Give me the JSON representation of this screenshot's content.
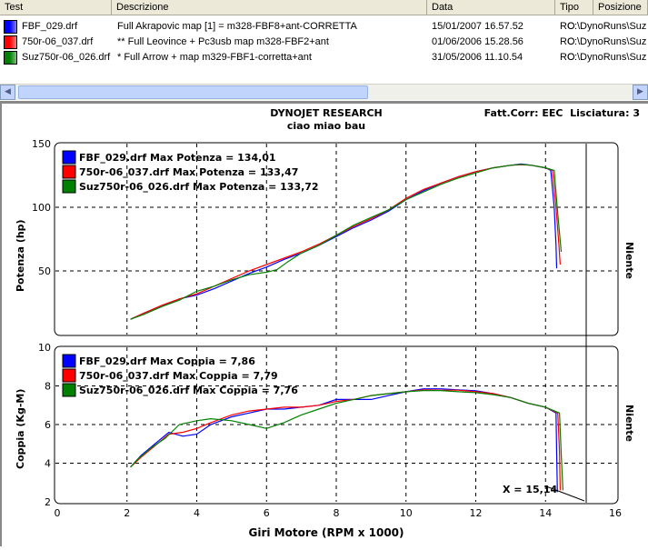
{
  "table": {
    "columns": [
      "Test",
      "Descrizione",
      "Data",
      "Tipo",
      "Posizione"
    ],
    "rows": [
      {
        "color": "#0000ff",
        "test": "FBF_029.drf",
        "descrizione": "Full Akrapovic map [1] = m328-FBF8+ant-CORRETTA",
        "data": "15/01/2007 16.57.52",
        "tipo": "RO",
        "posizione": "C:\\DynoRuns\\Suz"
      },
      {
        "color": "#ff0000",
        "test": "750r-06_037.drf",
        "descrizione": "** Full Leovince + Pc3usb map m328-FBF2+ant",
        "data": "01/06/2006 15.28.56",
        "tipo": "RO",
        "posizione": "C:\\DynoRuns\\Suz"
      },
      {
        "color": "#008000",
        "test": "Suz750r-06_026.drf",
        "descrizione": "* Full Arrow + map m329-FBF1-corretta+ant",
        "data": "31/05/2006 11.10.54",
        "tipo": "RO",
        "posizione": "C:\\DynoRuns\\Suz"
      }
    ]
  },
  "scrollbar": {
    "left_arrow": "◀",
    "right_arrow": "▶"
  },
  "header": {
    "title": "DYNOJET RESEARCH",
    "subtitle": "ciao miao bau",
    "info": "Fatt.Corr: EEC  Lisciatura: 3"
  },
  "xlabel": "Giri Motore (RPM x 1000)",
  "side_label": "Niente",
  "cursor_label": "X = 15,14",
  "chart_data": [
    {
      "type": "line",
      "ylabel": "Potenza (hp)",
      "ylim": [
        0,
        150
      ],
      "xlim": [
        0,
        16
      ],
      "yticks": [
        "50",
        "100",
        "150"
      ],
      "xticks": [],
      "grid": true,
      "legend_position": "top-left",
      "series": [
        {
          "name": "FBF_029.drf Max Potenza = 134,01",
          "color": "#0000ff",
          "x": [
            2.1,
            2.5,
            3,
            3.5,
            4,
            4.5,
            5,
            5.5,
            6,
            6.5,
            7,
            7.5,
            8,
            8.5,
            9,
            9.5,
            10,
            10.5,
            11,
            11.5,
            12,
            12.5,
            13,
            13.3,
            13.6,
            14,
            14.15,
            14.25,
            14.3,
            14.32
          ],
          "y": [
            12,
            17,
            22,
            28,
            31,
            36,
            42,
            48,
            53,
            59,
            64,
            70,
            77,
            84,
            90,
            97,
            106,
            113,
            119,
            124,
            128,
            131,
            133,
            134,
            133,
            131,
            129,
            100,
            70,
            52
          ]
        },
        {
          "name": "750r-06_037.drf Max Potenza = 133,47",
          "color": "#ff0000",
          "x": [
            2.1,
            2.5,
            3,
            3.5,
            4,
            4.5,
            5,
            5.5,
            6,
            6.5,
            7,
            7.5,
            8,
            8.5,
            9,
            9.5,
            10,
            10.5,
            11,
            11.5,
            12,
            12.5,
            13,
            13.3,
            13.6,
            14,
            14.2,
            14.3,
            14.38,
            14.42
          ],
          "y": [
            12,
            17,
            23,
            28,
            32,
            38,
            44,
            50,
            55,
            60,
            65,
            71,
            78,
            85,
            91,
            98,
            107,
            114,
            119,
            124,
            128,
            131,
            133,
            133.5,
            133,
            131,
            129,
            100,
            72,
            55
          ]
        },
        {
          "name": "Suz750r-06_026.drf Max Potenza = 133,72",
          "color": "#008000",
          "x": [
            2.1,
            2.5,
            3,
            3.5,
            4,
            4.5,
            5,
            5.5,
            6,
            6.3,
            6.6,
            7,
            7.5,
            8,
            8.5,
            9,
            9.5,
            10,
            10.5,
            11,
            11.5,
            12,
            12.5,
            13,
            13.3,
            13.6,
            14,
            14.25,
            14.35,
            14.45
          ],
          "y": [
            12,
            16,
            22,
            27,
            34,
            38,
            43,
            47,
            49,
            51,
            57,
            64,
            70,
            78,
            86,
            92,
            98,
            106,
            112,
            118,
            123,
            127,
            131,
            133,
            133.7,
            133,
            131,
            129,
            95,
            65
          ]
        }
      ]
    },
    {
      "type": "line",
      "ylabel": "Coppia (Kg-M)",
      "ylim": [
        2,
        10
      ],
      "xlim": [
        0,
        16
      ],
      "yticks": [
        "2",
        "4",
        "6",
        "8",
        "10"
      ],
      "xticks": [
        "0",
        "2",
        "4",
        "6",
        "8",
        "10",
        "12",
        "14",
        "16"
      ],
      "grid": true,
      "legend_position": "top-left",
      "series": [
        {
          "name": "FBF_029.drf Max Coppia = 7,86",
          "color": "#0000ff",
          "x": [
            2.1,
            2.4,
            2.8,
            3.2,
            3.6,
            4,
            4.4,
            5,
            5.5,
            6,
            6.5,
            7,
            7.5,
            8,
            8.5,
            9,
            9.5,
            10,
            10.5,
            11,
            11.5,
            12,
            12.5,
            13,
            13.5,
            14,
            14.3,
            14.32,
            14.34
          ],
          "y": [
            3.8,
            4.4,
            5.0,
            5.6,
            5.4,
            5.5,
            6.0,
            6.4,
            6.6,
            6.8,
            6.8,
            6.9,
            7.0,
            7.3,
            7.3,
            7.3,
            7.5,
            7.7,
            7.85,
            7.85,
            7.8,
            7.75,
            7.6,
            7.4,
            7.1,
            6.9,
            6.6,
            4.5,
            2.5
          ]
        },
        {
          "name": "750r-06_037.drf Max Coppia = 7,79",
          "color": "#ff0000",
          "x": [
            2.1,
            2.4,
            2.8,
            3.2,
            3.6,
            4,
            4.4,
            5,
            5.5,
            6,
            6.5,
            7,
            7.5,
            8,
            8.5,
            9,
            9.5,
            10,
            10.5,
            11,
            11.5,
            12,
            12.5,
            13,
            13.5,
            14,
            14.35,
            14.4,
            14.42
          ],
          "y": [
            3.8,
            4.3,
            4.9,
            5.5,
            5.6,
            5.8,
            6.1,
            6.5,
            6.7,
            6.8,
            6.9,
            6.9,
            7.0,
            7.2,
            7.3,
            7.5,
            7.6,
            7.7,
            7.8,
            7.78,
            7.78,
            7.7,
            7.6,
            7.4,
            7.1,
            6.9,
            6.6,
            4.6,
            2.6
          ]
        },
        {
          "name": "Suz750r-06_026.drf Max Coppia = 7,76",
          "color": "#008000",
          "x": [
            2.1,
            2.3,
            2.7,
            3.1,
            3.5,
            4,
            4.4,
            5,
            5.5,
            6,
            6.5,
            7,
            7.5,
            8,
            8.5,
            9,
            9.5,
            10,
            10.5,
            11,
            11.5,
            12,
            12.5,
            13,
            13.5,
            14,
            14.4,
            14.45,
            14.5
          ],
          "y": [
            3.8,
            4.2,
            4.8,
            5.3,
            6.0,
            6.2,
            6.3,
            6.2,
            6.0,
            5.8,
            6.1,
            6.5,
            6.8,
            7.1,
            7.3,
            7.5,
            7.6,
            7.7,
            7.76,
            7.76,
            7.7,
            7.65,
            7.55,
            7.4,
            7.1,
            6.9,
            6.6,
            4.5,
            2.6
          ]
        }
      ]
    }
  ]
}
